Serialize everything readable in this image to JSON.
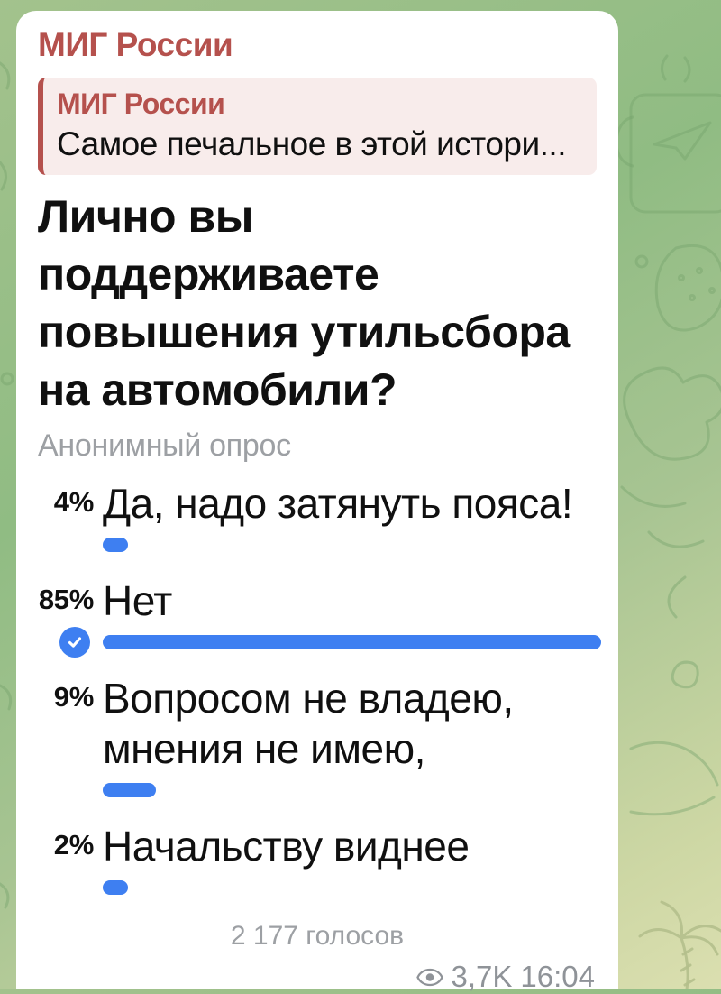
{
  "colors": {
    "accent_red": "#b5514d",
    "accent_blue": "#3e7ff1",
    "quote_bg": "#f8eceb",
    "text_gray": "#9da0a4",
    "bubble_bg": "#ffffff",
    "wallpaper_green_dark": "#90bc83",
    "wallpaper_green_light": "#dbdfb0"
  },
  "message": {
    "channel_name": "МИГ России",
    "reply_quote": {
      "title": "МИГ России",
      "snippet": "Самое печальное в этой истори..."
    },
    "poll": {
      "question": "Лично вы поддерживаете повышения утильсбора на автомобили?",
      "type_label": "Анонимный опрос",
      "options": [
        {
          "percent": "4%",
          "value": 4,
          "text": "Да, надо затянуть пояса!",
          "voted": false
        },
        {
          "percent": "85%",
          "value": 85,
          "text": "Нет",
          "voted": true
        },
        {
          "percent": "9%",
          "value": 9,
          "text": "Вопросом не владею, мнения не имею,",
          "voted": false
        },
        {
          "percent": "2%",
          "value": 2,
          "text": "Начальству виднее",
          "voted": false
        }
      ],
      "votes_label": "2 177 голосов"
    },
    "footer": {
      "views": "3,7K",
      "time": "16:04"
    }
  }
}
